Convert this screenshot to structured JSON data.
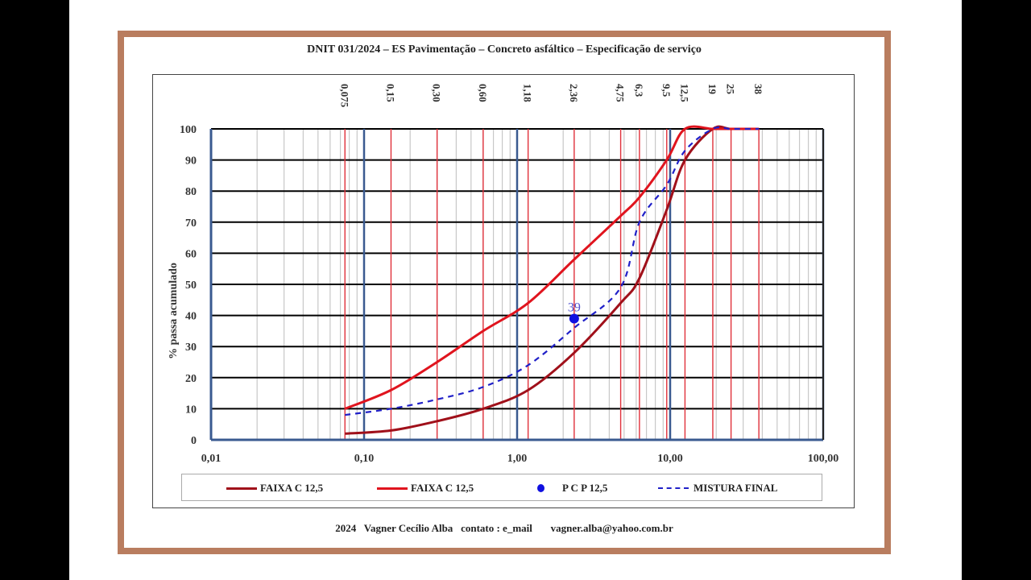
{
  "title": "DNIT 031/2024 – ES Pavimentação – Concreto asfáltico – Especificação de serviço",
  "footer": {
    "year": "2024",
    "author": "Vagner Cecílio Alba",
    "contact_label": "contato : e_mail",
    "email": "vagner.alba@yahoo.com.br"
  },
  "legend": {
    "items": [
      {
        "label": "FAIXA C 12,5",
        "style": "line",
        "color": "#a0101a"
      },
      {
        "label": "FAIXA C 12,5",
        "style": "line",
        "color": "#e0141e"
      },
      {
        "label": "P C P 12,5",
        "style": "dot",
        "color": "#1010e0"
      },
      {
        "label": "MISTURA FINAL",
        "style": "dashed",
        "color": "#2020c8"
      }
    ]
  },
  "colors": {
    "frame": "#b97d5f",
    "upper_limit": "#e0141e",
    "lower_limit": "#a0101a",
    "mix": "#2020c8",
    "pcp": "#1010e0",
    "axis": "#3a5a90"
  },
  "chart_data": {
    "type": "line",
    "title": "DNIT 031/2024 – ES Pavimentação – Concreto asfáltico – Especificação de serviço",
    "xlabel": "",
    "ylabel": "% passa acumulado",
    "x_scale": "log",
    "xlim": [
      0.01,
      100
    ],
    "ylim": [
      0,
      100
    ],
    "x_tick_labels": [
      "0,01",
      "0,10",
      "1,00",
      "10,00",
      "100,00"
    ],
    "y_ticks": [
      0,
      10,
      20,
      30,
      40,
      50,
      60,
      70,
      80,
      90,
      100
    ],
    "sieve_labels": [
      "0,075",
      "0,15",
      "0,30",
      "0,60",
      "1,18",
      "2,36",
      "4,75",
      "6,3",
      "9,5",
      "12,5",
      "19",
      "25",
      "38"
    ],
    "x": [
      0.075,
      0.15,
      0.3,
      0.6,
      1.18,
      2.36,
      4.75,
      6.3,
      9.5,
      12.5,
      19,
      25,
      38
    ],
    "series": [
      {
        "name": "FAIXA C 12,5 (inferior)",
        "values": [
          2,
          3,
          6,
          10,
          16,
          28,
          44,
          52,
          74,
          90,
          100,
          100,
          100
        ]
      },
      {
        "name": "FAIXA C 12,5 (superior)",
        "values": [
          10,
          16,
          25,
          35,
          44,
          58,
          72,
          78,
          90,
          100,
          100,
          100,
          100
        ]
      },
      {
        "name": "MISTURA FINAL",
        "values": [
          8,
          10,
          13,
          17,
          24,
          36,
          49,
          70,
          82,
          93,
          100,
          100,
          100
        ]
      }
    ],
    "points": [
      {
        "name": "P C P 12,5",
        "x": 2.36,
        "y": 39,
        "label": "39"
      }
    ],
    "grid": true,
    "legend_position": "bottom"
  }
}
